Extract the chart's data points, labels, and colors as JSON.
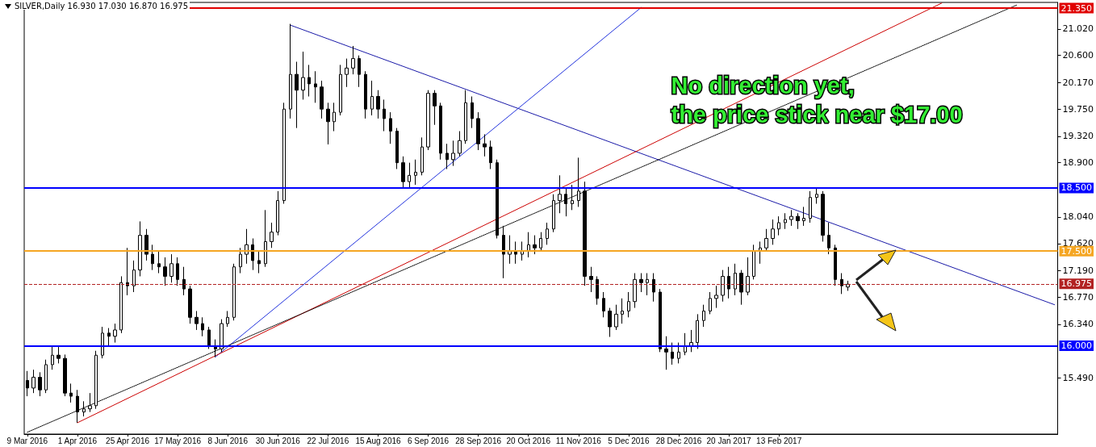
{
  "chart_data": {
    "type": "candlestick",
    "title": "SILVER,Daily 16.930 17.030 16.870 16.975",
    "categories": [
      "9 Mar 2016",
      null,
      null,
      null,
      null,
      null,
      null,
      null,
      "1 Apr 2016",
      null,
      null,
      null,
      null,
      null,
      null,
      null,
      "25 Apr 2016",
      null,
      null,
      null,
      null,
      null,
      null,
      null,
      "17 May 2016",
      null,
      null,
      null,
      null,
      null,
      null,
      null,
      "8 Jun 2016",
      null,
      null,
      null,
      null,
      null,
      null,
      null,
      "30 Jun 2016",
      null,
      null,
      null,
      null,
      null,
      null,
      null,
      "22 Jul 2016",
      null,
      null,
      null,
      null,
      null,
      null,
      null,
      "15 Aug 2016",
      null,
      null,
      null,
      null,
      null,
      null,
      null,
      "6 Sep 2016",
      null,
      null,
      null,
      null,
      null,
      null,
      null,
      "28 Sep 2016",
      null,
      null,
      null,
      null,
      null,
      null,
      null,
      "20 Oct 2016",
      null,
      null,
      null,
      null,
      null,
      null,
      null,
      "11 Nov 2016",
      null,
      null,
      null,
      null,
      null,
      null,
      null,
      "5 Dec 2016",
      null,
      null,
      null,
      null,
      null,
      null,
      null,
      "28 Dec 2016",
      null,
      null,
      null,
      null,
      null,
      null,
      null,
      "20 Jan 2017",
      null,
      null,
      null,
      null,
      null,
      null,
      null,
      "13 Feb 2017",
      null,
      null,
      null,
      null,
      null,
      null,
      null,
      null,
      null,
      null,
      null,
      null,
      null,
      null,
      null,
      null,
      null,
      null,
      null,
      null,
      null,
      null,
      null,
      null,
      null,
      null,
      null,
      null,
      null,
      null,
      null,
      null,
      null,
      null,
      null,
      null,
      null,
      null,
      null,
      null,
      null,
      null,
      null,
      null
    ],
    "series": [
      {
        "type": "candlestick",
        "color": "#000000",
        "ohlc": [
          [
            15.45,
            15.6,
            15.2,
            15.33
          ],
          [
            15.33,
            15.62,
            15.25,
            15.5
          ],
          [
            15.5,
            15.58,
            15.2,
            15.3
          ],
          [
            15.3,
            15.78,
            15.25,
            15.7
          ],
          [
            15.7,
            16.0,
            15.62,
            15.85
          ],
          [
            15.85,
            15.98,
            15.72,
            15.8
          ],
          [
            15.8,
            15.86,
            15.2,
            15.25
          ],
          [
            15.25,
            15.4,
            15.1,
            15.2
          ],
          [
            15.2,
            15.3,
            14.78,
            14.95
          ],
          [
            14.95,
            15.12,
            14.88,
            15.0
          ],
          [
            15.0,
            15.25,
            14.95,
            15.05
          ],
          [
            15.05,
            15.92,
            15.0,
            15.85
          ],
          [
            15.85,
            16.3,
            15.8,
            16.2
          ],
          [
            16.2,
            16.28,
            16.0,
            16.15
          ],
          [
            16.15,
            16.35,
            16.05,
            16.25
          ],
          [
            16.25,
            17.1,
            16.2,
            17.0
          ],
          [
            17.0,
            17.55,
            16.8,
            16.95
          ],
          [
            16.95,
            17.35,
            16.85,
            17.2
          ],
          [
            17.2,
            17.97,
            17.1,
            17.75
          ],
          [
            17.75,
            17.85,
            17.35,
            17.45
          ],
          [
            17.45,
            17.6,
            17.2,
            17.3
          ],
          [
            17.3,
            17.5,
            17.15,
            17.25
          ],
          [
            17.25,
            17.4,
            16.95,
            17.1
          ],
          [
            17.1,
            17.45,
            17.0,
            17.3
          ],
          [
            17.3,
            17.4,
            16.95,
            17.05
          ],
          [
            17.05,
            17.25,
            16.8,
            16.9
          ],
          [
            16.9,
            16.95,
            16.35,
            16.45
          ],
          [
            16.45,
            16.55,
            16.25,
            16.35
          ],
          [
            16.35,
            16.45,
            16.15,
            16.25
          ],
          [
            16.25,
            16.3,
            15.95,
            16.0
          ],
          [
            16.0,
            16.1,
            15.82,
            15.95
          ],
          [
            15.95,
            16.42,
            15.9,
            16.35
          ],
          [
            16.35,
            16.55,
            16.3,
            16.45
          ],
          [
            16.45,
            17.3,
            16.4,
            17.25
          ],
          [
            17.25,
            17.55,
            17.15,
            17.45
          ],
          [
            17.45,
            17.85,
            17.3,
            17.6
          ],
          [
            17.6,
            17.7,
            17.2,
            17.35
          ],
          [
            17.35,
            17.5,
            17.15,
            17.3
          ],
          [
            17.3,
            18.15,
            17.25,
            17.65
          ],
          [
            17.65,
            17.95,
            17.55,
            17.8
          ],
          [
            17.8,
            18.45,
            17.75,
            18.3
          ],
          [
            18.3,
            19.85,
            18.25,
            19.75
          ],
          [
            19.75,
            21.1,
            19.6,
            20.3
          ],
          [
            20.3,
            20.5,
            19.45,
            20.05
          ],
          [
            20.05,
            20.66,
            19.9,
            20.25
          ],
          [
            20.25,
            20.45,
            19.95,
            20.15
          ],
          [
            20.15,
            20.35,
            19.85,
            20.1
          ],
          [
            20.1,
            20.2,
            19.6,
            19.75
          ],
          [
            19.75,
            19.85,
            19.19,
            19.55
          ],
          [
            19.55,
            19.85,
            19.4,
            19.7
          ],
          [
            19.7,
            20.45,
            19.65,
            20.3
          ],
          [
            20.3,
            20.55,
            20.1,
            20.4
          ],
          [
            20.4,
            20.75,
            20.3,
            20.55
          ],
          [
            20.55,
            20.6,
            20.1,
            20.3
          ],
          [
            20.3,
            20.35,
            19.6,
            19.75
          ],
          [
            19.75,
            20.2,
            19.65,
            19.95
          ],
          [
            19.95,
            20.05,
            19.6,
            19.75
          ],
          [
            19.75,
            19.9,
            19.4,
            19.6
          ],
          [
            19.6,
            19.7,
            19.2,
            19.4
          ],
          [
            19.4,
            19.45,
            18.8,
            18.9
          ],
          [
            18.9,
            19.0,
            18.5,
            18.6
          ],
          [
            18.6,
            18.9,
            18.5,
            18.7
          ],
          [
            18.7,
            18.95,
            18.55,
            18.75
          ],
          [
            18.75,
            19.3,
            18.7,
            19.15
          ],
          [
            19.15,
            20.05,
            19.1,
            20.0
          ],
          [
            20.0,
            20.05,
            19.5,
            19.8
          ],
          [
            19.8,
            19.85,
            18.95,
            19.05
          ],
          [
            19.05,
            19.2,
            18.8,
            18.95
          ],
          [
            18.95,
            19.25,
            18.85,
            19.05
          ],
          [
            19.05,
            19.4,
            19.0,
            19.25
          ],
          [
            19.25,
            20.05,
            19.2,
            19.85
          ],
          [
            19.85,
            19.95,
            19.45,
            19.6
          ],
          [
            19.6,
            19.7,
            19.1,
            19.2
          ],
          [
            19.2,
            19.35,
            19.0,
            19.15
          ],
          [
            19.15,
            19.25,
            18.8,
            18.9
          ],
          [
            18.9,
            18.95,
            17.7,
            17.75
          ],
          [
            17.75,
            17.9,
            17.07,
            17.45
          ],
          [
            17.45,
            17.75,
            17.3,
            17.5
          ],
          [
            17.5,
            17.65,
            17.3,
            17.45
          ],
          [
            17.45,
            17.65,
            17.35,
            17.5
          ],
          [
            17.5,
            17.8,
            17.4,
            17.6
          ],
          [
            17.6,
            17.75,
            17.45,
            17.55
          ],
          [
            17.55,
            17.8,
            17.5,
            17.7
          ],
          [
            17.7,
            17.95,
            17.6,
            17.85
          ],
          [
            17.85,
            18.4,
            17.8,
            18.3
          ],
          [
            18.3,
            18.7,
            18.1,
            18.4
          ],
          [
            18.4,
            18.5,
            18.05,
            18.25
          ],
          [
            18.25,
            18.55,
            18.15,
            18.3
          ],
          [
            18.3,
            18.98,
            18.2,
            18.45
          ],
          [
            18.45,
            18.6,
            16.95,
            17.1
          ],
          [
            17.1,
            17.25,
            16.85,
            17.05
          ],
          [
            17.05,
            17.1,
            16.65,
            16.75
          ],
          [
            16.75,
            16.85,
            16.45,
            16.55
          ],
          [
            16.55,
            16.6,
            16.14,
            16.3
          ],
          [
            16.3,
            16.65,
            16.25,
            16.5
          ],
          [
            16.5,
            16.75,
            16.35,
            16.55
          ],
          [
            16.55,
            16.85,
            16.45,
            16.7
          ],
          [
            16.7,
            17.15,
            16.6,
            17.05
          ],
          [
            17.05,
            17.15,
            16.85,
            17.0
          ],
          [
            17.0,
            17.15,
            16.8,
            17.05
          ],
          [
            17.05,
            17.15,
            16.7,
            16.85
          ],
          [
            16.85,
            16.9,
            15.9,
            15.95
          ],
          [
            15.95,
            16.15,
            15.62,
            15.9
          ],
          [
            15.9,
            16.05,
            15.7,
            15.8
          ],
          [
            15.8,
            16.05,
            15.72,
            15.9
          ],
          [
            15.9,
            16.2,
            15.85,
            16.0
          ],
          [
            16.0,
            16.25,
            15.9,
            16.05
          ],
          [
            16.05,
            16.5,
            15.95,
            16.4
          ],
          [
            16.4,
            16.65,
            16.3,
            16.55
          ],
          [
            16.55,
            16.85,
            16.5,
            16.75
          ],
          [
            16.75,
            16.95,
            16.6,
            16.8
          ],
          [
            16.8,
            17.2,
            16.7,
            17.1
          ],
          [
            17.1,
            17.25,
            16.75,
            16.9
          ],
          [
            16.9,
            17.3,
            16.8,
            17.15
          ],
          [
            17.15,
            17.2,
            16.65,
            16.85
          ],
          [
            16.85,
            17.4,
            16.8,
            17.1
          ],
          [
            17.1,
            17.6,
            17.05,
            17.5
          ],
          [
            17.5,
            17.65,
            17.3,
            17.55
          ],
          [
            17.55,
            17.85,
            17.5,
            17.7
          ],
          [
            17.7,
            18.0,
            17.6,
            17.85
          ],
          [
            17.85,
            18.05,
            17.75,
            17.95
          ],
          [
            17.95,
            18.1,
            17.85,
            18.0
          ],
          [
            18.0,
            18.15,
            17.9,
            18.05
          ],
          [
            18.05,
            18.1,
            17.85,
            17.98
          ],
          [
            17.98,
            18.2,
            17.9,
            18.02
          ],
          [
            18.02,
            18.45,
            17.95,
            18.35
          ],
          [
            18.35,
            18.5,
            18.25,
            18.4
          ],
          [
            18.4,
            18.45,
            17.65,
            17.75
          ],
          [
            17.75,
            17.95,
            17.45,
            17.55
          ],
          [
            17.55,
            17.6,
            16.95,
            17.05
          ],
          [
            17.05,
            17.15,
            16.82,
            16.95
          ],
          [
            16.93,
            17.03,
            16.87,
            16.975
          ],
          null,
          null,
          null,
          null,
          null,
          null,
          null,
          null,
          null,
          null,
          null,
          null,
          null,
          null,
          null,
          null,
          null,
          null,
          null,
          null,
          null,
          null,
          null,
          null,
          null,
          null,
          null,
          null,
          null,
          null,
          null,
          null,
          null
        ]
      },
      {
        "type": "line",
        "color": "#1a1aa8",
        "values": [
          null,
          null,
          null,
          null,
          null,
          null,
          null,
          null,
          null,
          null,
          null,
          null,
          null,
          null,
          null,
          null,
          null,
          null,
          null,
          null,
          null,
          null,
          null,
          null,
          null,
          null,
          null,
          null,
          null,
          null,
          null,
          null,
          null,
          null,
          null,
          null,
          null,
          null,
          null,
          null,
          null,
          null,
          21.08,
          null,
          null,
          null,
          null,
          null,
          null,
          null,
          null,
          null,
          null,
          null,
          null,
          null,
          null,
          null,
          null,
          null,
          null,
          null,
          null,
          null,
          null,
          null,
          null,
          null,
          null,
          null,
          null,
          null,
          null,
          null,
          null,
          null,
          null,
          null,
          null,
          null,
          null,
          null,
          null,
          null,
          null,
          null,
          null,
          null,
          null,
          null,
          null,
          null,
          null,
          null,
          null,
          null,
          null,
          null,
          null,
          null,
          null,
          null,
          null,
          null,
          null,
          null,
          null,
          null,
          null,
          null,
          null,
          null,
          null,
          null,
          null,
          null,
          null,
          null,
          null,
          null,
          null,
          null,
          null,
          null,
          null,
          null,
          null,
          null,
          null,
          null,
          null,
          null,
          null,
          null,
          null,
          null,
          null,
          null,
          null,
          null,
          null,
          null,
          null,
          null,
          null,
          null,
          null,
          null,
          null,
          null,
          null,
          null,
          null,
          null,
          null,
          null,
          null,
          null,
          null,
          null,
          null,
          null,
          null,
          null,
          16.65
        ]
      },
      {
        "type": "line",
        "color": "#2233dd",
        "values": [
          null,
          null,
          null,
          null,
          null,
          null,
          null,
          null,
          null,
          null,
          null,
          null,
          null,
          null,
          null,
          null,
          null,
          null,
          null,
          null,
          null,
          null,
          null,
          null,
          null,
          null,
          null,
          null,
          null,
          null,
          15.82,
          null,
          null,
          null,
          null,
          null,
          null,
          null,
          null,
          null,
          null,
          null,
          null,
          null,
          null,
          null,
          null,
          null,
          null,
          null,
          null,
          null,
          null,
          null,
          null,
          null,
          null,
          null,
          null,
          null,
          null,
          null,
          null,
          null,
          null,
          null,
          null,
          null,
          null,
          null,
          null,
          null,
          null,
          null,
          null,
          null,
          null,
          null,
          null,
          null,
          null,
          null,
          null,
          null,
          null,
          null,
          null,
          null,
          null,
          null,
          null,
          null,
          null,
          null,
          null,
          null,
          null,
          null,
          21.36,
          null,
          null,
          null,
          null,
          null,
          null,
          null,
          null,
          null,
          null,
          null,
          null,
          null,
          null,
          null,
          null,
          null,
          null,
          null,
          null,
          null,
          null,
          null,
          null,
          null,
          null,
          null,
          null,
          null,
          null,
          null,
          null,
          null,
          null,
          null,
          null,
          null,
          null,
          null,
          null,
          null,
          null,
          null,
          null,
          null,
          null,
          null,
          null,
          null,
          null,
          null,
          null,
          null,
          null,
          null,
          null,
          null,
          null,
          null,
          null,
          null,
          null,
          null,
          null,
          null,
          null
        ]
      },
      {
        "type": "line",
        "color": "#cc0000",
        "values": [
          null,
          null,
          null,
          null,
          null,
          null,
          null,
          null,
          14.78,
          null,
          null,
          null,
          null,
          null,
          null,
          null,
          null,
          null,
          null,
          null,
          null,
          null,
          null,
          null,
          null,
          null,
          null,
          null,
          null,
          null,
          null,
          null,
          null,
          null,
          null,
          null,
          null,
          null,
          null,
          null,
          null,
          null,
          null,
          null,
          null,
          null,
          null,
          null,
          null,
          null,
          null,
          null,
          null,
          null,
          null,
          null,
          null,
          null,
          null,
          null,
          null,
          null,
          null,
          null,
          null,
          null,
          null,
          null,
          null,
          null,
          null,
          null,
          null,
          null,
          null,
          null,
          null,
          null,
          null,
          null,
          null,
          null,
          null,
          null,
          null,
          null,
          null,
          null,
          null,
          null,
          null,
          null,
          null,
          null,
          null,
          null,
          null,
          null,
          null,
          null,
          null,
          null,
          null,
          null,
          null,
          null,
          null,
          null,
          null,
          null,
          null,
          null,
          null,
          null,
          null,
          null,
          null,
          null,
          null,
          null,
          null,
          null,
          null,
          null,
          null,
          null,
          null,
          null,
          null,
          null,
          null,
          null,
          null,
          null,
          null,
          null,
          null,
          null,
          null,
          null,
          null,
          null,
          null,
          null,
          null,
          null,
          21.43,
          null,
          null,
          null,
          null,
          null,
          null,
          null,
          null,
          null,
          null,
          null,
          null,
          null,
          null,
          null,
          null,
          null,
          null
        ]
      },
      {
        "type": "line",
        "color": "#000000",
        "line_style": "dotted",
        "values": [
          14.63,
          null,
          null,
          null,
          null,
          null,
          null,
          null,
          null,
          null,
          null,
          null,
          null,
          null,
          null,
          null,
          null,
          null,
          null,
          null,
          null,
          null,
          null,
          null,
          null,
          null,
          null,
          null,
          null,
          null,
          null,
          null,
          null,
          null,
          null,
          null,
          null,
          null,
          null,
          null,
          null,
          null,
          null,
          null,
          null,
          null,
          null,
          null,
          null,
          null,
          null,
          null,
          null,
          null,
          null,
          null,
          null,
          null,
          null,
          null,
          null,
          null,
          null,
          null,
          null,
          null,
          null,
          null,
          null,
          null,
          null,
          null,
          null,
          null,
          null,
          null,
          null,
          null,
          null,
          null,
          null,
          null,
          null,
          null,
          null,
          null,
          null,
          null,
          null,
          null,
          null,
          null,
          null,
          null,
          null,
          null,
          null,
          null,
          null,
          null,
          null,
          null,
          null,
          null,
          null,
          null,
          null,
          null,
          null,
          null,
          null,
          null,
          null,
          null,
          null,
          null,
          null,
          null,
          null,
          null,
          null,
          null,
          null,
          null,
          null,
          null,
          null,
          null,
          null,
          null,
          null,
          null,
          null,
          null,
          null,
          null,
          null,
          null,
          null,
          null,
          null,
          null,
          null,
          null,
          null,
          null,
          null,
          null,
          null,
          null,
          null,
          null,
          null,
          null,
          null,
          null,
          null,
          null,
          21.4,
          null,
          null,
          null,
          null,
          null,
          null
        ]
      }
    ],
    "ylim": [
      14.6,
      21.44
    ],
    "yticks": [
      {
        "value": 15.49,
        "label": "15.490"
      },
      {
        "value": 16.34,
        "label": "16.340"
      },
      {
        "value": 16.77,
        "label": "16.770"
      },
      {
        "value": 17.19,
        "label": "17.190"
      },
      {
        "value": 17.62,
        "label": "17.620"
      },
      {
        "value": 18.04,
        "label": "18.040"
      },
      {
        "value": 18.9,
        "label": "18.900"
      },
      {
        "value": 19.32,
        "label": "19.320"
      },
      {
        "value": 19.75,
        "label": "19.750"
      },
      {
        "value": 20.17,
        "label": "20.170"
      },
      {
        "value": 20.6,
        "label": "20.600"
      },
      {
        "value": 21.02,
        "label": "21.020"
      }
    ],
    "ref_lines": [
      {
        "axis": "y",
        "value": 21.35,
        "label": "21.350",
        "color": "#e00000"
      },
      {
        "axis": "y",
        "value": 18.5,
        "label": "18.500",
        "color": "#0000ff"
      },
      {
        "axis": "y",
        "value": 17.5,
        "label": "17.500",
        "color": "#f5a623"
      },
      {
        "axis": "y",
        "value": 16.975,
        "label": "16.975",
        "color": "#b22222",
        "line_style": "dashed"
      },
      {
        "axis": "y",
        "value": 16.0,
        "label": "16.000",
        "color": "#0000ff"
      }
    ],
    "annotations": [
      "No direction yet,\nthe price stick near $17.00"
    ]
  }
}
